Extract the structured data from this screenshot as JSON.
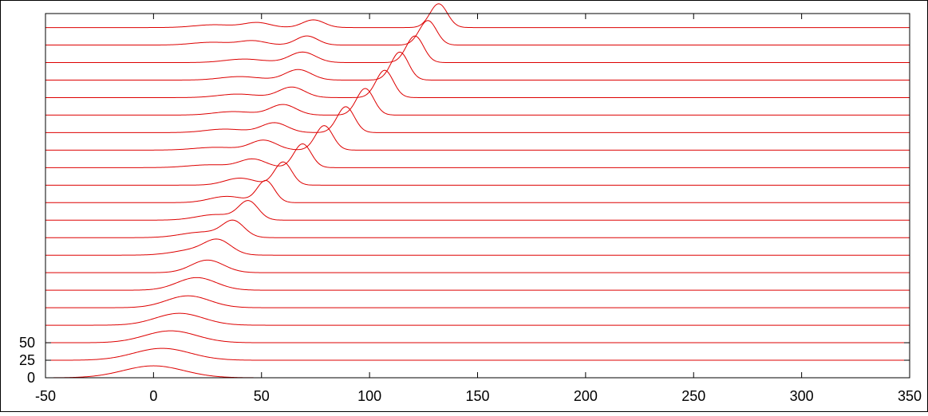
{
  "chart_data": {
    "type": "line",
    "title": "",
    "xlabel": "",
    "ylabel": "",
    "xlim": [
      -50,
      350
    ],
    "xticks": [
      -50,
      0,
      50,
      100,
      150,
      200,
      250,
      300,
      350
    ],
    "xtick_labels": [
      "-50",
      "0",
      "50",
      "100",
      "150",
      "200",
      "250",
      "300",
      "350"
    ],
    "yticks": [
      0,
      25,
      50
    ],
    "ytick_labels": [
      "0",
      "25",
      "50"
    ],
    "ylim": [
      0,
      520
    ],
    "y_axis_note": "waterfall plot: each curve offset vertically by 25 units",
    "grid": false,
    "legend": "none",
    "line_color": "#dd0000",
    "curve_offset": 25,
    "curve_count": 21,
    "series": [
      {
        "offset": 0,
        "peaks": [
          {
            "center": 0,
            "height": 17,
            "width": 14
          }
        ]
      },
      {
        "offset": 25,
        "peaks": [
          {
            "center": 4,
            "height": 17,
            "width": 13
          }
        ]
      },
      {
        "offset": 50,
        "peaks": [
          {
            "center": 8,
            "height": 17,
            "width": 12
          }
        ]
      },
      {
        "offset": 75,
        "peaks": [
          {
            "center": 12,
            "height": 17,
            "width": 11
          }
        ]
      },
      {
        "offset": 100,
        "peaks": [
          {
            "center": 16,
            "height": 17,
            "width": 10
          }
        ]
      },
      {
        "offset": 125,
        "peaks": [
          {
            "center": 20,
            "height": 18,
            "width": 9
          }
        ]
      },
      {
        "offset": 150,
        "peaks": [
          {
            "center": 25,
            "height": 18,
            "width": 7.5
          }
        ]
      },
      {
        "offset": 175,
        "peaks": [
          {
            "center": 20,
            "height": 8,
            "width": 10
          },
          {
            "center": 30,
            "height": 18,
            "width": 6
          }
        ]
      },
      {
        "offset": 200,
        "peaks": [
          {
            "center": 23,
            "height": 8,
            "width": 10
          },
          {
            "center": 37,
            "height": 22,
            "width": 5
          }
        ]
      },
      {
        "offset": 225,
        "peaks": [
          {
            "center": 29,
            "height": 8,
            "width": 9
          },
          {
            "center": 44,
            "height": 26,
            "width": 4.5
          }
        ]
      },
      {
        "offset": 250,
        "peaks": [
          {
            "center": 34,
            "height": 9,
            "width": 8
          },
          {
            "center": 52,
            "height": 31,
            "width": 4
          }
        ]
      },
      {
        "offset": 275,
        "peaks": [
          {
            "center": 40,
            "height": 10,
            "width": 7
          },
          {
            "center": 60,
            "height": 33,
            "width": 4
          }
        ]
      },
      {
        "offset": 300,
        "peaks": [
          {
            "center": 26,
            "height": 4,
            "width": 10
          },
          {
            "center": 46,
            "height": 12,
            "width": 6
          },
          {
            "center": 69,
            "height": 34,
            "width": 4
          }
        ]
      },
      {
        "offset": 325,
        "peaks": [
          {
            "center": 29,
            "height": 4,
            "width": 10
          },
          {
            "center": 51,
            "height": 14,
            "width": 6
          },
          {
            "center": 79,
            "height": 35,
            "width": 4
          }
        ]
      },
      {
        "offset": 350,
        "peaks": [
          {
            "center": 33,
            "height": 5,
            "width": 9
          },
          {
            "center": 56,
            "height": 14,
            "width": 6
          },
          {
            "center": 89,
            "height": 37,
            "width": 4
          }
        ]
      },
      {
        "offset": 375,
        "peaks": [
          {
            "center": 37,
            "height": 5,
            "width": 9
          },
          {
            "center": 60,
            "height": 15,
            "width": 6
          },
          {
            "center": 98,
            "height": 38,
            "width": 4
          }
        ]
      },
      {
        "offset": 400,
        "peaks": [
          {
            "center": 39,
            "height": 5,
            "width": 9
          },
          {
            "center": 64,
            "height": 15,
            "width": 6
          },
          {
            "center": 107,
            "height": 39,
            "width": 4
          }
        ]
      },
      {
        "offset": 425,
        "peaks": [
          {
            "center": 40,
            "height": 5,
            "width": 9
          },
          {
            "center": 67,
            "height": 15,
            "width": 6
          },
          {
            "center": 114,
            "height": 40,
            "width": 4
          }
        ]
      },
      {
        "offset": 450,
        "peaks": [
          {
            "center": 42,
            "height": 5,
            "width": 9
          },
          {
            "center": 69,
            "height": 15,
            "width": 6
          },
          {
            "center": 121,
            "height": 38,
            "width": 4
          }
        ]
      },
      {
        "offset": 475,
        "peaks": [
          {
            "center": 27,
            "height": 4,
            "width": 9
          },
          {
            "center": 46,
            "height": 6,
            "width": 6
          },
          {
            "center": 71,
            "height": 13,
            "width": 5
          },
          {
            "center": 127,
            "height": 35,
            "width": 4
          }
        ]
      },
      {
        "offset": 500,
        "peaks": [
          {
            "center": 28,
            "height": 4,
            "width": 9
          },
          {
            "center": 48,
            "height": 7,
            "width": 6
          },
          {
            "center": 74,
            "height": 11,
            "width": 5
          },
          {
            "center": 132,
            "height": 34,
            "width": 4
          }
        ]
      }
    ]
  }
}
